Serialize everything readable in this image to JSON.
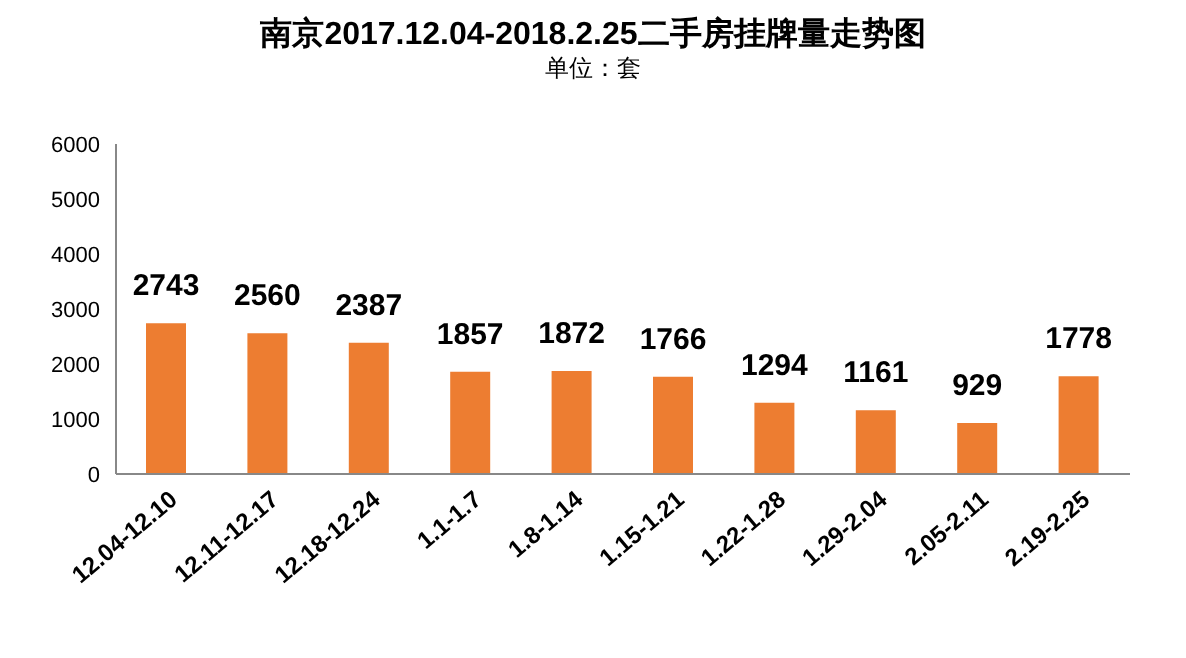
{
  "chart_data": {
    "type": "bar",
    "title": "南京2017.12.04-2018.2.25二手房挂牌量走势图",
    "subtitle": "单位：套",
    "categories": [
      "12.04-12.10",
      "12.11-12.17",
      "12.18-12.24",
      "1.1-1.7",
      "1.8-1.14",
      "1.15-1.21",
      "1.22-1.28",
      "1.29-2.04",
      "2.05-2.11",
      "2.19-2.25"
    ],
    "values": [
      2743,
      2560,
      2387,
      1857,
      1872,
      1766,
      1294,
      1161,
      929,
      1778
    ],
    "color": "#ed7d31",
    "ylim": [
      0,
      6000
    ],
    "yticks": [
      0,
      1000,
      2000,
      3000,
      4000,
      5000,
      6000
    ],
    "data_labels": true,
    "grid": false
  }
}
